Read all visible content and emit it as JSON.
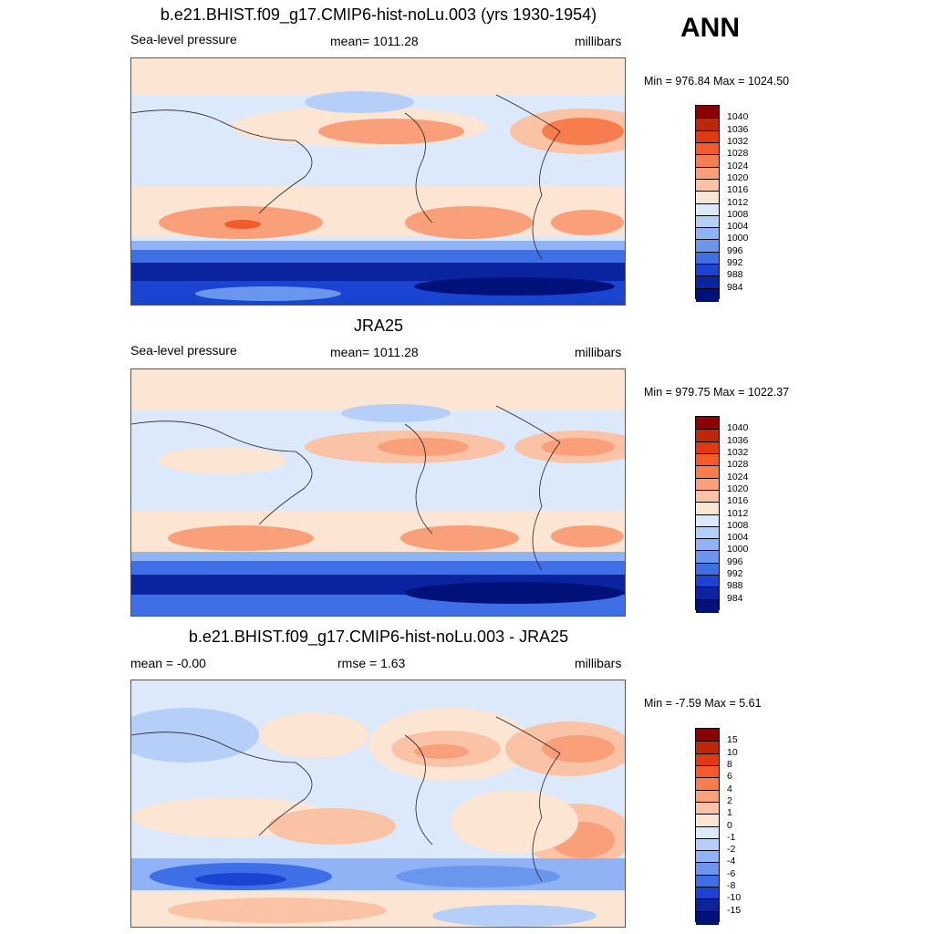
{
  "season": "ANN",
  "panels": [
    {
      "title": "b.e21.BHIST.f09_g17.CMIP6-hist-noLu.003 (yrs 1930-1954)",
      "left_label": "Sea-level pressure",
      "center_label": "mean= 1011.28",
      "right_label": "millibars",
      "minmax": "Min = 976.84 Max = 1024.50"
    },
    {
      "title": "JRA25",
      "left_label": "Sea-level pressure",
      "center_label": "mean= 1011.28",
      "right_label": "millibars",
      "minmax": "Min = 979.75 Max = 1022.37"
    },
    {
      "title": "b.e21.BHIST.f09_g17.CMIP6-hist-noLu.003 - JRA25",
      "left_label": "mean =  -0.00",
      "center_label": "rmse =   1.63",
      "right_label": "millibars",
      "minmax": "Min =  -7.59 Max =   5.61"
    }
  ],
  "colorbars": [
    {
      "labels": [
        "1040",
        "1036",
        "1032",
        "1028",
        "1024",
        "1020",
        "1016",
        "1012",
        "1008",
        "1004",
        "1000",
        "996",
        "992",
        "988",
        "984"
      ],
      "colors": [
        "#8b0000",
        "#c0260a",
        "#e03a10",
        "#f45a2a",
        "#f77c4e",
        "#f9a07a",
        "#fbc3a6",
        "#fde5d4",
        "#dce9fb",
        "#b6cff8",
        "#8fb3f4",
        "#6a96ee",
        "#3f6fe6",
        "#1c44d2",
        "#0a239f",
        "#00127a"
      ]
    },
    {
      "labels": [
        "1040",
        "1036",
        "1032",
        "1028",
        "1024",
        "1020",
        "1016",
        "1012",
        "1008",
        "1004",
        "1000",
        "996",
        "992",
        "988",
        "984"
      ],
      "colors": [
        "#8b0000",
        "#c0260a",
        "#e03a10",
        "#f45a2a",
        "#f77c4e",
        "#f9a07a",
        "#fbc3a6",
        "#fde5d4",
        "#dce9fb",
        "#b6cff8",
        "#8fb3f4",
        "#6a96ee",
        "#3f6fe6",
        "#1c44d2",
        "#0a239f",
        "#00127a"
      ]
    },
    {
      "labels": [
        "15",
        "10",
        "8",
        "6",
        "4",
        "2",
        "1",
        "0",
        "-1",
        "-2",
        "-4",
        "-6",
        "-8",
        "-10",
        "-15"
      ],
      "colors": [
        "#8b0000",
        "#c0260a",
        "#e03a10",
        "#f45a2a",
        "#f77c4e",
        "#f9a07a",
        "#fbc3a6",
        "#fde5d4",
        "#dce9fb",
        "#b6cff8",
        "#8fb3f4",
        "#6a96ee",
        "#3f6fe6",
        "#1c44d2",
        "#0a239f",
        "#00127a"
      ]
    }
  ],
  "chart_data": [
    {
      "type": "heatmap",
      "title": "b.e21.BHIST.f09_g17.CMIP6-hist-noLu.003 (yrs 1930-1954)",
      "variable": "Sea-level pressure",
      "units": "millibars",
      "mean": 1011.28,
      "min": 976.84,
      "max": 1024.5,
      "contour_levels": [
        984,
        988,
        992,
        996,
        1000,
        1004,
        1008,
        1012,
        1016,
        1020,
        1024,
        1028,
        1032,
        1036,
        1040
      ]
    },
    {
      "type": "heatmap",
      "title": "JRA25",
      "variable": "Sea-level pressure",
      "units": "millibars",
      "mean": 1011.28,
      "min": 979.75,
      "max": 1022.37,
      "contour_levels": [
        984,
        988,
        992,
        996,
        1000,
        1004,
        1008,
        1012,
        1016,
        1020,
        1024,
        1028,
        1032,
        1036,
        1040
      ]
    },
    {
      "type": "heatmap",
      "title": "b.e21.BHIST.f09_g17.CMIP6-hist-noLu.003 - JRA25",
      "units": "millibars",
      "mean": -0.0,
      "rmse": 1.63,
      "min": -7.59,
      "max": 5.61,
      "contour_levels": [
        -15,
        -10,
        -8,
        -6,
        -4,
        -2,
        -1,
        0,
        1,
        2,
        4,
        6,
        8,
        10,
        15
      ]
    }
  ]
}
